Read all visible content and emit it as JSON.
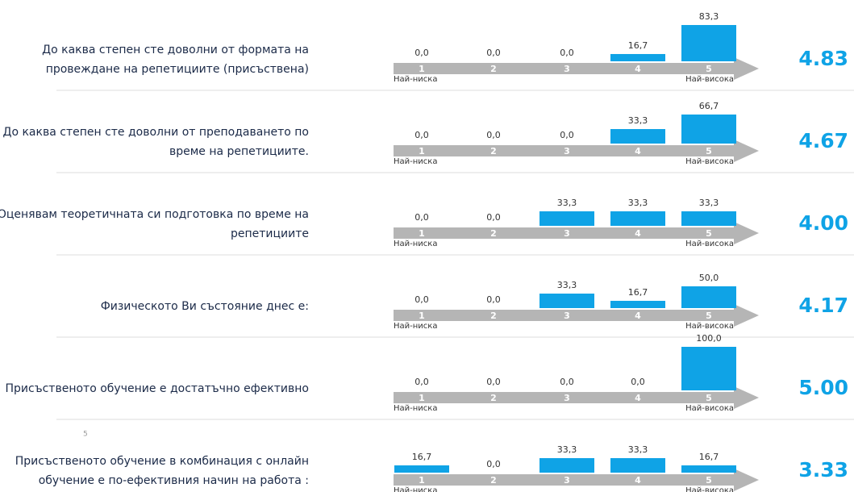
{
  "page_number": "5",
  "chart_data": [
    {
      "type": "bar",
      "title": [
        "До каква степен сте доволни от формата на",
        "провеждане на репетициите (присъствена)"
      ],
      "categories": [
        "1",
        "2",
        "3",
        "4",
        "5"
      ],
      "values": [
        0,
        0,
        0,
        16.7,
        83.3
      ],
      "value_labels": [
        "0,0",
        "0,0",
        "0,0",
        "16,7",
        "83,3"
      ],
      "low_label": "Най-ниска",
      "high_label": "Най-висока",
      "score": "4.83",
      "color": "#0fa3e6"
    },
    {
      "type": "bar",
      "title": [
        "До каква степен сте доволни от преподаването по",
        "време на репетициите."
      ],
      "categories": [
        "1",
        "2",
        "3",
        "4",
        "5"
      ],
      "values": [
        0,
        0,
        0,
        33.3,
        66.7
      ],
      "value_labels": [
        "0,0",
        "0,0",
        "0,0",
        "33,3",
        "66,7"
      ],
      "low_label": "Най-ниска",
      "high_label": "Най-висока",
      "score": "4.67",
      "color": "#0fa3e6"
    },
    {
      "type": "bar",
      "title": [
        "Оценявам теоретичната си подготовка по време на",
        "репетициите"
      ],
      "categories": [
        "1",
        "2",
        "3",
        "4",
        "5"
      ],
      "values": [
        0,
        0,
        33.3,
        33.3,
        33.3
      ],
      "value_labels": [
        "0,0",
        "0,0",
        "33,3",
        "33,3",
        "33,3"
      ],
      "low_label": "Най-ниска",
      "high_label": "Най-висока",
      "score": "4.00",
      "color": "#0fa3e6"
    },
    {
      "type": "bar",
      "title": [
        "Физическото Ви състояние днес е:"
      ],
      "categories": [
        "1",
        "2",
        "3",
        "4",
        "5"
      ],
      "values": [
        0,
        0,
        33.3,
        16.7,
        50
      ],
      "value_labels": [
        "0,0",
        "0,0",
        "33,3",
        "16,7",
        "50,0"
      ],
      "low_label": "Най-ниска",
      "high_label": "Най-висока",
      "score": "4.17",
      "color": "#0fa3e6"
    },
    {
      "type": "bar",
      "title": [
        "Присъственото обучение е достатъчно ефективно"
      ],
      "categories": [
        "1",
        "2",
        "3",
        "4",
        "5"
      ],
      "values": [
        0,
        0,
        0,
        0,
        100
      ],
      "value_labels": [
        "0,0",
        "0,0",
        "0,0",
        "0,0",
        "100,0"
      ],
      "low_label": "Най-ниска",
      "high_label": "Най-висока",
      "score": "5.00",
      "color": "#0fa3e6"
    },
    {
      "type": "bar",
      "title": [
        "Присъственото обучение в комбинация с онлайн",
        "обучение е по-ефективния начин на работа :"
      ],
      "categories": [
        "1",
        "2",
        "3",
        "4",
        "5"
      ],
      "values": [
        16.7,
        0,
        33.3,
        33.3,
        16.7
      ],
      "value_labels": [
        "16,7",
        "0,0",
        "33,3",
        "33,3",
        "16,7"
      ],
      "low_label": "Най-ниска",
      "high_label": "Най-висока",
      "score": "3.33",
      "color": "#0fa3e6"
    }
  ]
}
